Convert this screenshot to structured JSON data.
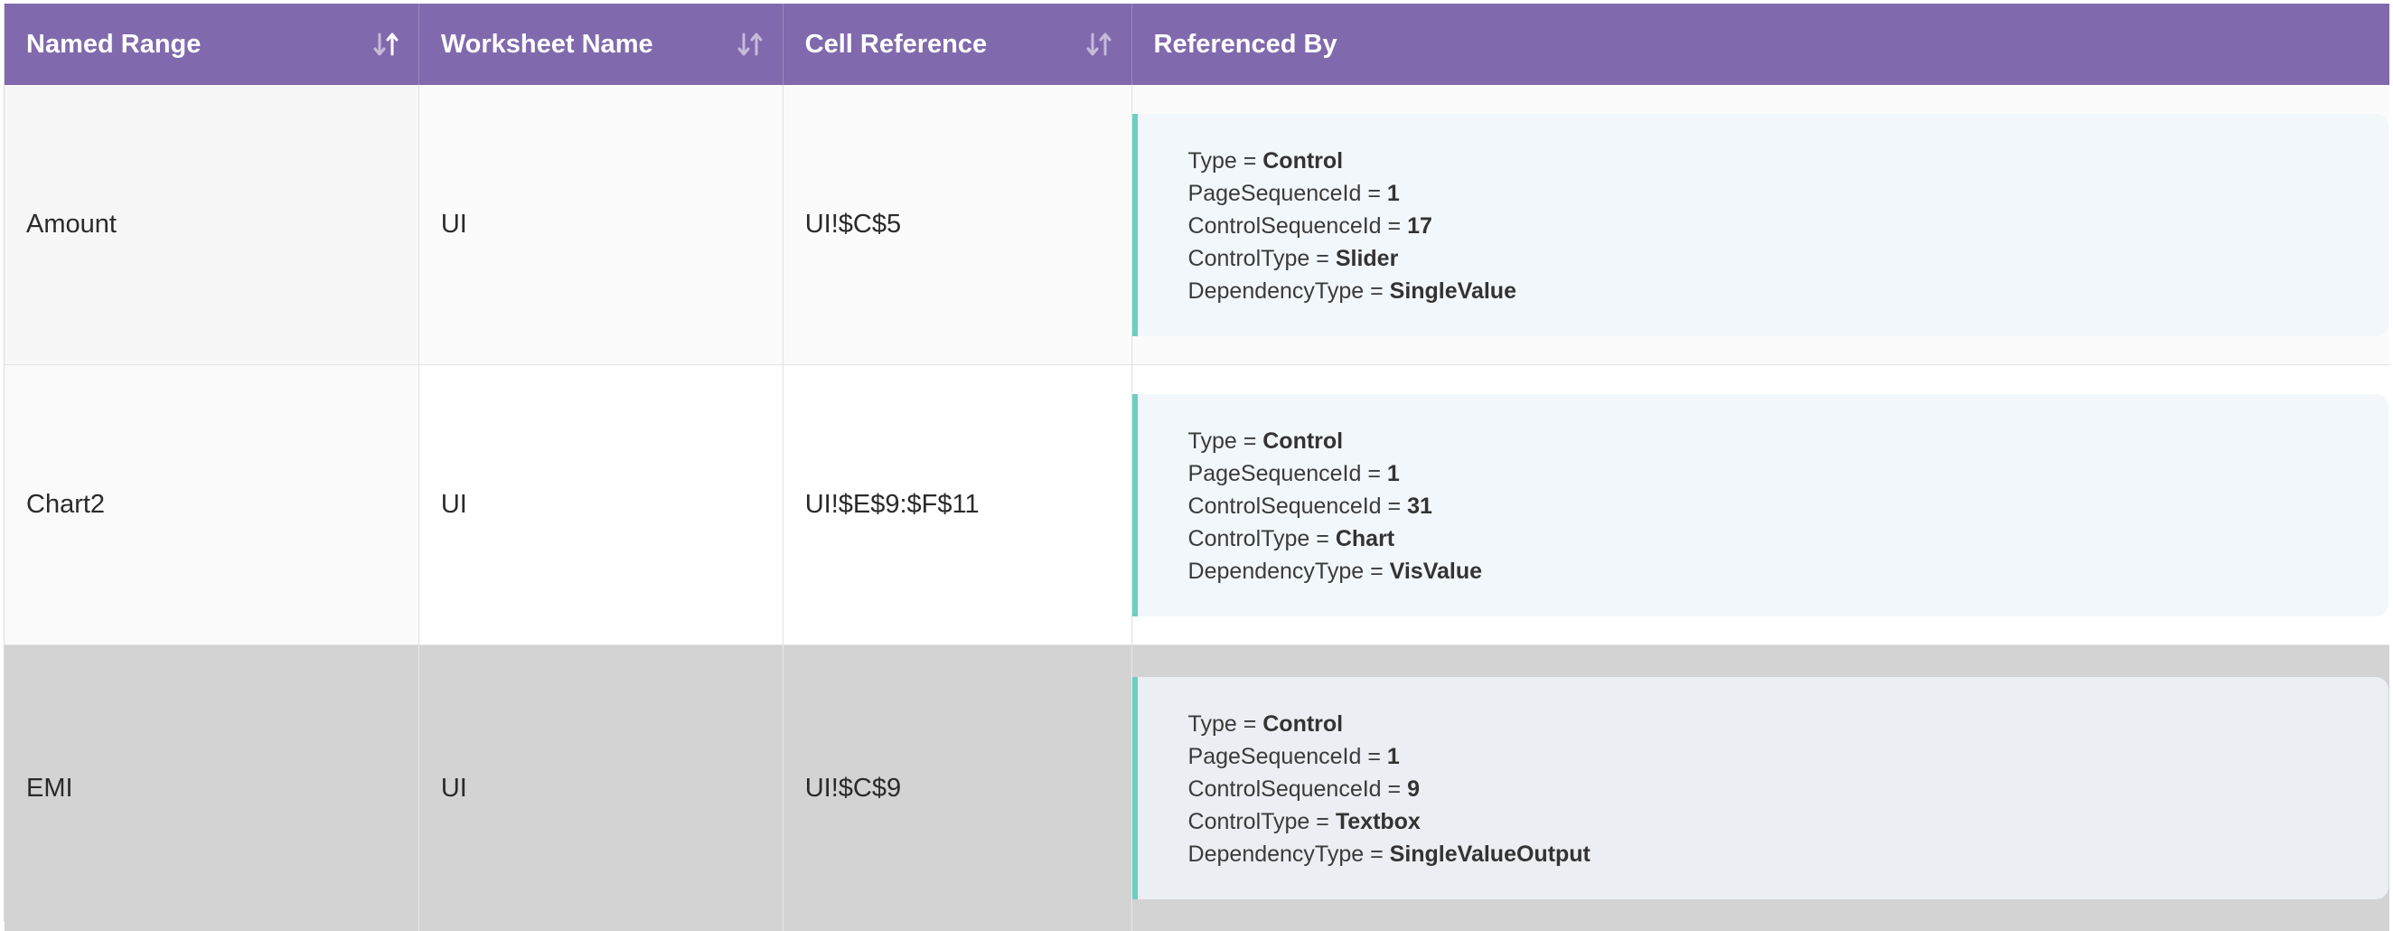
{
  "columns": [
    {
      "label": "Named Range",
      "sortable": true
    },
    {
      "label": "Worksheet Name",
      "sortable": true
    },
    {
      "label": "Cell Reference",
      "sortable": true
    },
    {
      "label": "Referenced By",
      "sortable": false
    }
  ],
  "rows": [
    {
      "named_range": "Amount",
      "worksheet": "UI",
      "cell_reference": "UI!$C$5",
      "referenced_by": [
        {
          "key": "Type",
          "value": "Control"
        },
        {
          "key": "PageSequenceId",
          "value": "1"
        },
        {
          "key": "ControlSequenceId",
          "value": "17"
        },
        {
          "key": "ControlType",
          "value": "Slider"
        },
        {
          "key": "DependencyType",
          "value": "SingleValue"
        }
      ]
    },
    {
      "named_range": "Chart2",
      "worksheet": "UI",
      "cell_reference": "UI!$E$9:$F$11",
      "referenced_by": [
        {
          "key": "Type",
          "value": "Control"
        },
        {
          "key": "PageSequenceId",
          "value": "1"
        },
        {
          "key": "ControlSequenceId",
          "value": "31"
        },
        {
          "key": "ControlType",
          "value": "Chart"
        },
        {
          "key": "DependencyType",
          "value": "VisValue"
        }
      ]
    },
    {
      "named_range": "EMI",
      "worksheet": "UI",
      "cell_reference": "UI!$C$9",
      "referenced_by": [
        {
          "key": "Type",
          "value": "Control"
        },
        {
          "key": "PageSequenceId",
          "value": "1"
        },
        {
          "key": "ControlSequenceId",
          "value": "9"
        },
        {
          "key": "ControlType",
          "value": "Textbox"
        },
        {
          "key": "DependencyType",
          "value": "SingleValueOutput"
        }
      ]
    }
  ],
  "separator": " = ",
  "colors": {
    "header_bg": "#8169ad",
    "accent_bar": "#6ccfbf",
    "hovered_row_bg": "#d3d3d3"
  },
  "icons": {
    "sort": "sort-arrows-icon"
  }
}
